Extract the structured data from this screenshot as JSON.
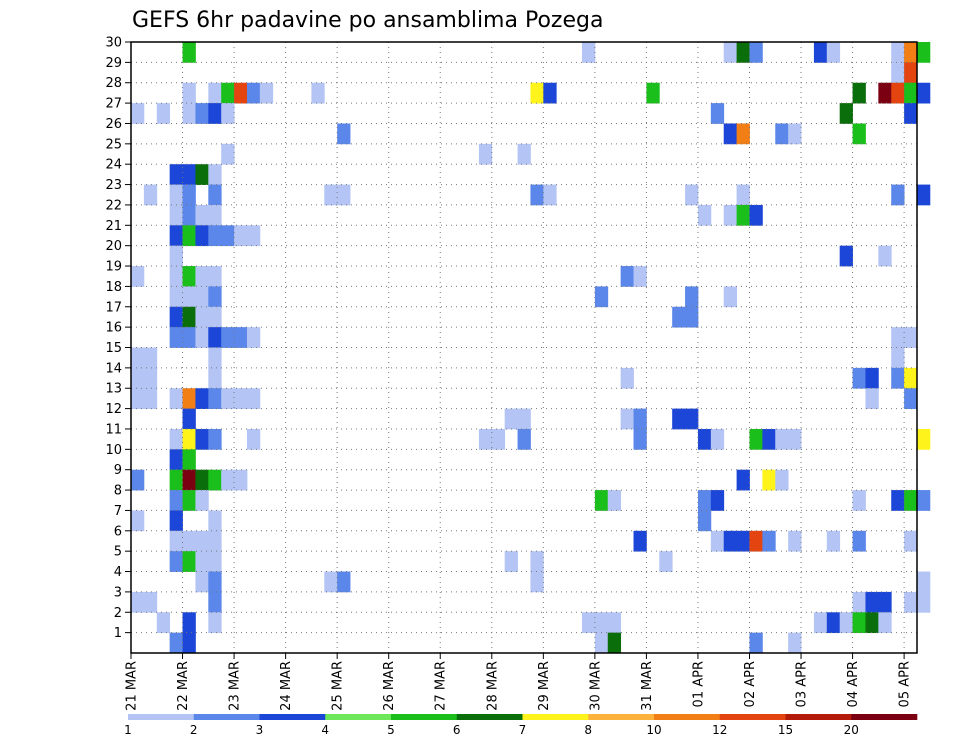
{
  "chart_data": {
    "type": "heatmap",
    "title": "GEFS 6hr padavine po ansamblima Pozega",
    "x_ticks": [
      "21 MAR",
      "22 MAR",
      "23 MAR",
      "24 MAR",
      "25 MAR",
      "26 MAR",
      "27 MAR",
      "28 MAR",
      "29 MAR",
      "30 MAR",
      "31 MAR",
      "01 APR",
      "02 APR",
      "03 APR",
      "04 APR",
      "05 APR"
    ],
    "y_ticks": [
      "1",
      "2",
      "3",
      "4",
      "5",
      "6",
      "7",
      "8",
      "9",
      "10",
      "11",
      "12",
      "13",
      "14",
      "15",
      "16",
      "17",
      "18",
      "19",
      "20",
      "21",
      "22",
      "23",
      "24",
      "25",
      "26",
      "27",
      "28",
      "29",
      "30"
    ],
    "xlim_steps": [
      0,
      61
    ],
    "ylim_members": [
      0,
      30
    ],
    "grid": true,
    "colorbar": {
      "levels": [
        "1",
        "2",
        "3",
        "4",
        "5",
        "6",
        "7",
        "8",
        "10",
        "12",
        "15",
        "20"
      ],
      "colors": [
        "#b4c5f5",
        "#5b87ea",
        "#1b46d8",
        "#6ee85a",
        "#1bbf1b",
        "#0a6e0a",
        "#fff31c",
        "#fdb23b",
        "#f27e16",
        "#e34410",
        "#b31a0a",
        "#7a0012"
      ]
    },
    "cells_note": "each cell: [time_step(6h, 0=21 MAR 00z), member, color_index 0-11]",
    "cells": [
      [
        4,
        27,
        0
      ],
      [
        6,
        27,
        0
      ],
      [
        7,
        27,
        4
      ],
      [
        8,
        27,
        9
      ],
      [
        9,
        27,
        1
      ],
      [
        10,
        27,
        0
      ],
      [
        14,
        27,
        0
      ],
      [
        0,
        26,
        0
      ],
      [
        2,
        26,
        0
      ],
      [
        4,
        26,
        0
      ],
      [
        5,
        26,
        1
      ],
      [
        6,
        26,
        2
      ],
      [
        7,
        26,
        0
      ],
      [
        16,
        25,
        1
      ],
      [
        46,
        25,
        2
      ],
      [
        47,
        25,
        8
      ],
      [
        50,
        25,
        1
      ],
      [
        51,
        25,
        0
      ],
      [
        56,
        25,
        4
      ],
      [
        7,
        24,
        0
      ],
      [
        27,
        24,
        0
      ],
      [
        30,
        24,
        0
      ],
      [
        3,
        23,
        2
      ],
      [
        4,
        23,
        2
      ],
      [
        5,
        23,
        5
      ],
      [
        6,
        23,
        0
      ],
      [
        1,
        22,
        0
      ],
      [
        3,
        22,
        0
      ],
      [
        4,
        22,
        1
      ],
      [
        6,
        22,
        1
      ],
      [
        15,
        22,
        0
      ],
      [
        16,
        22,
        0
      ],
      [
        31,
        22,
        1
      ],
      [
        32,
        22,
        0
      ],
      [
        43,
        22,
        0
      ],
      [
        47,
        22,
        0
      ],
      [
        59,
        22,
        1
      ],
      [
        61,
        22,
        2
      ],
      [
        3,
        21,
        0
      ],
      [
        4,
        21,
        1
      ],
      [
        5,
        21,
        0
      ],
      [
        6,
        21,
        0
      ],
      [
        44,
        21,
        0
      ],
      [
        46,
        21,
        0
      ],
      [
        47,
        21,
        4
      ],
      [
        48,
        21,
        2
      ],
      [
        3,
        20,
        2
      ],
      [
        4,
        20,
        4
      ],
      [
        5,
        20,
        2
      ],
      [
        6,
        20,
        1
      ],
      [
        7,
        20,
        1
      ],
      [
        8,
        20,
        0
      ],
      [
        9,
        20,
        0
      ],
      [
        3,
        19,
        0
      ],
      [
        55,
        19,
        2
      ],
      [
        58,
        19,
        0
      ],
      [
        0,
        18,
        0
      ],
      [
        3,
        18,
        0
      ],
      [
        4,
        18,
        4
      ],
      [
        5,
        18,
        0
      ],
      [
        6,
        18,
        0
      ],
      [
        38,
        18,
        1
      ],
      [
        39,
        18,
        0
      ],
      [
        3,
        17,
        0
      ],
      [
        4,
        17,
        0
      ],
      [
        5,
        17,
        0
      ],
      [
        6,
        17,
        1
      ],
      [
        36,
        17,
        1
      ],
      [
        43,
        17,
        1
      ],
      [
        46,
        17,
        0
      ],
      [
        3,
        16,
        2
      ],
      [
        4,
        16,
        5
      ],
      [
        5,
        16,
        0
      ],
      [
        6,
        16,
        0
      ],
      [
        42,
        16,
        1
      ],
      [
        43,
        16,
        1
      ],
      [
        3,
        15,
        1
      ],
      [
        4,
        15,
        1
      ],
      [
        5,
        15,
        0
      ],
      [
        6,
        15,
        2
      ],
      [
        7,
        15,
        1
      ],
      [
        8,
        15,
        1
      ],
      [
        9,
        15,
        0
      ],
      [
        59,
        15,
        0
      ],
      [
        60,
        15,
        0
      ],
      [
        0,
        14,
        0
      ],
      [
        1,
        14,
        0
      ],
      [
        6,
        14,
        0
      ],
      [
        59,
        14,
        0
      ],
      [
        0,
        13,
        0
      ],
      [
        1,
        13,
        0
      ],
      [
        6,
        13,
        0
      ],
      [
        38,
        13,
        0
      ],
      [
        56,
        13,
        1
      ],
      [
        57,
        13,
        2
      ],
      [
        59,
        13,
        1
      ],
      [
        60,
        13,
        6
      ],
      [
        0,
        12,
        0
      ],
      [
        1,
        12,
        0
      ],
      [
        3,
        12,
        0
      ],
      [
        4,
        12,
        8
      ],
      [
        5,
        12,
        2
      ],
      [
        6,
        12,
        1
      ],
      [
        7,
        12,
        0
      ],
      [
        8,
        12,
        0
      ],
      [
        9,
        12,
        0
      ],
      [
        57,
        12,
        0
      ],
      [
        60,
        12,
        1
      ],
      [
        4,
        11,
        2
      ],
      [
        29,
        11,
        0
      ],
      [
        30,
        11,
        0
      ],
      [
        38,
        11,
        0
      ],
      [
        39,
        11,
        1
      ],
      [
        42,
        11,
        2
      ],
      [
        43,
        11,
        2
      ],
      [
        3,
        10,
        0
      ],
      [
        4,
        10,
        6
      ],
      [
        5,
        10,
        2
      ],
      [
        6,
        10,
        1
      ],
      [
        9,
        10,
        0
      ],
      [
        27,
        10,
        0
      ],
      [
        28,
        10,
        0
      ],
      [
        30,
        10,
        1
      ],
      [
        39,
        10,
        1
      ],
      [
        44,
        10,
        2
      ],
      [
        45,
        10,
        0
      ],
      [
        48,
        10,
        4
      ],
      [
        49,
        10,
        2
      ],
      [
        50,
        10,
        0
      ],
      [
        51,
        10,
        0
      ],
      [
        61,
        10,
        6
      ],
      [
        3,
        9,
        2
      ],
      [
        4,
        9,
        4
      ],
      [
        0,
        8,
        1
      ],
      [
        3,
        8,
        4
      ],
      [
        4,
        8,
        11
      ],
      [
        5,
        8,
        5
      ],
      [
        6,
        8,
        4
      ],
      [
        7,
        8,
        0
      ],
      [
        8,
        8,
        0
      ],
      [
        47,
        8,
        2
      ],
      [
        49,
        8,
        6
      ],
      [
        50,
        8,
        0
      ],
      [
        3,
        7,
        1
      ],
      [
        4,
        7,
        4
      ],
      [
        5,
        7,
        0
      ],
      [
        36,
        7,
        4
      ],
      [
        37,
        7,
        0
      ],
      [
        44,
        7,
        1
      ],
      [
        45,
        7,
        2
      ],
      [
        56,
        7,
        0
      ],
      [
        59,
        7,
        2
      ],
      [
        60,
        7,
        4
      ],
      [
        61,
        7,
        1
      ],
      [
        0,
        6,
        0
      ],
      [
        3,
        6,
        2
      ],
      [
        6,
        6,
        0
      ],
      [
        44,
        6,
        1
      ],
      [
        3,
        5,
        0
      ],
      [
        4,
        5,
        0
      ],
      [
        5,
        5,
        0
      ],
      [
        6,
        5,
        0
      ],
      [
        39,
        5,
        2
      ],
      [
        45,
        5,
        0
      ],
      [
        46,
        5,
        2
      ],
      [
        47,
        5,
        2
      ],
      [
        48,
        5,
        9
      ],
      [
        49,
        5,
        1
      ],
      [
        51,
        5,
        0
      ],
      [
        54,
        5,
        0
      ],
      [
        56,
        5,
        1
      ],
      [
        60,
        5,
        0
      ],
      [
        3,
        4,
        1
      ],
      [
        4,
        4,
        4
      ],
      [
        5,
        4,
        0
      ],
      [
        6,
        4,
        0
      ],
      [
        29,
        4,
        0
      ],
      [
        31,
        4,
        0
      ],
      [
        41,
        4,
        0
      ],
      [
        5,
        3,
        0
      ],
      [
        6,
        3,
        1
      ],
      [
        15,
        3,
        0
      ],
      [
        16,
        3,
        1
      ],
      [
        31,
        3,
        0
      ],
      [
        61,
        3,
        0
      ],
      [
        0,
        2,
        0
      ],
      [
        1,
        2,
        0
      ],
      [
        6,
        2,
        1
      ],
      [
        56,
        2,
        0
      ],
      [
        57,
        2,
        2
      ],
      [
        58,
        2,
        2
      ],
      [
        60,
        2,
        0
      ],
      [
        61,
        2,
        0
      ],
      [
        2,
        1,
        0
      ],
      [
        4,
        1,
        2
      ],
      [
        6,
        1,
        0
      ],
      [
        35,
        1,
        0
      ],
      [
        36,
        1,
        0
      ],
      [
        37,
        1,
        0
      ],
      [
        53,
        1,
        0
      ],
      [
        54,
        1,
        2
      ],
      [
        55,
        1,
        0
      ],
      [
        56,
        1,
        4
      ],
      [
        57,
        1,
        5
      ],
      [
        58,
        1,
        0
      ],
      [
        3,
        0,
        1
      ],
      [
        4,
        0,
        2
      ],
      [
        36,
        0,
        0
      ],
      [
        37,
        0,
        5
      ],
      [
        48,
        0,
        1
      ],
      [
        51,
        0,
        0
      ],
      [
        4,
        29,
        4
      ],
      [
        35,
        29,
        0
      ],
      [
        46,
        29,
        0
      ],
      [
        47,
        29,
        5
      ],
      [
        48,
        29,
        1
      ],
      [
        53,
        29,
        2
      ],
      [
        54,
        29,
        0
      ],
      [
        59,
        29,
        0
      ],
      [
        60,
        29,
        8
      ],
      [
        61,
        29,
        4
      ],
      [
        59,
        28,
        0
      ],
      [
        60,
        28,
        9
      ],
      [
        31,
        27,
        6
      ],
      [
        32,
        27,
        2
      ],
      [
        40,
        27,
        4
      ],
      [
        56,
        27,
        5
      ],
      [
        58,
        27,
        11
      ],
      [
        59,
        27,
        9
      ],
      [
        60,
        27,
        4
      ],
      [
        61,
        27,
        2
      ],
      [
        45,
        26,
        1
      ],
      [
        55,
        26,
        5
      ],
      [
        60,
        26,
        2
      ]
    ]
  }
}
